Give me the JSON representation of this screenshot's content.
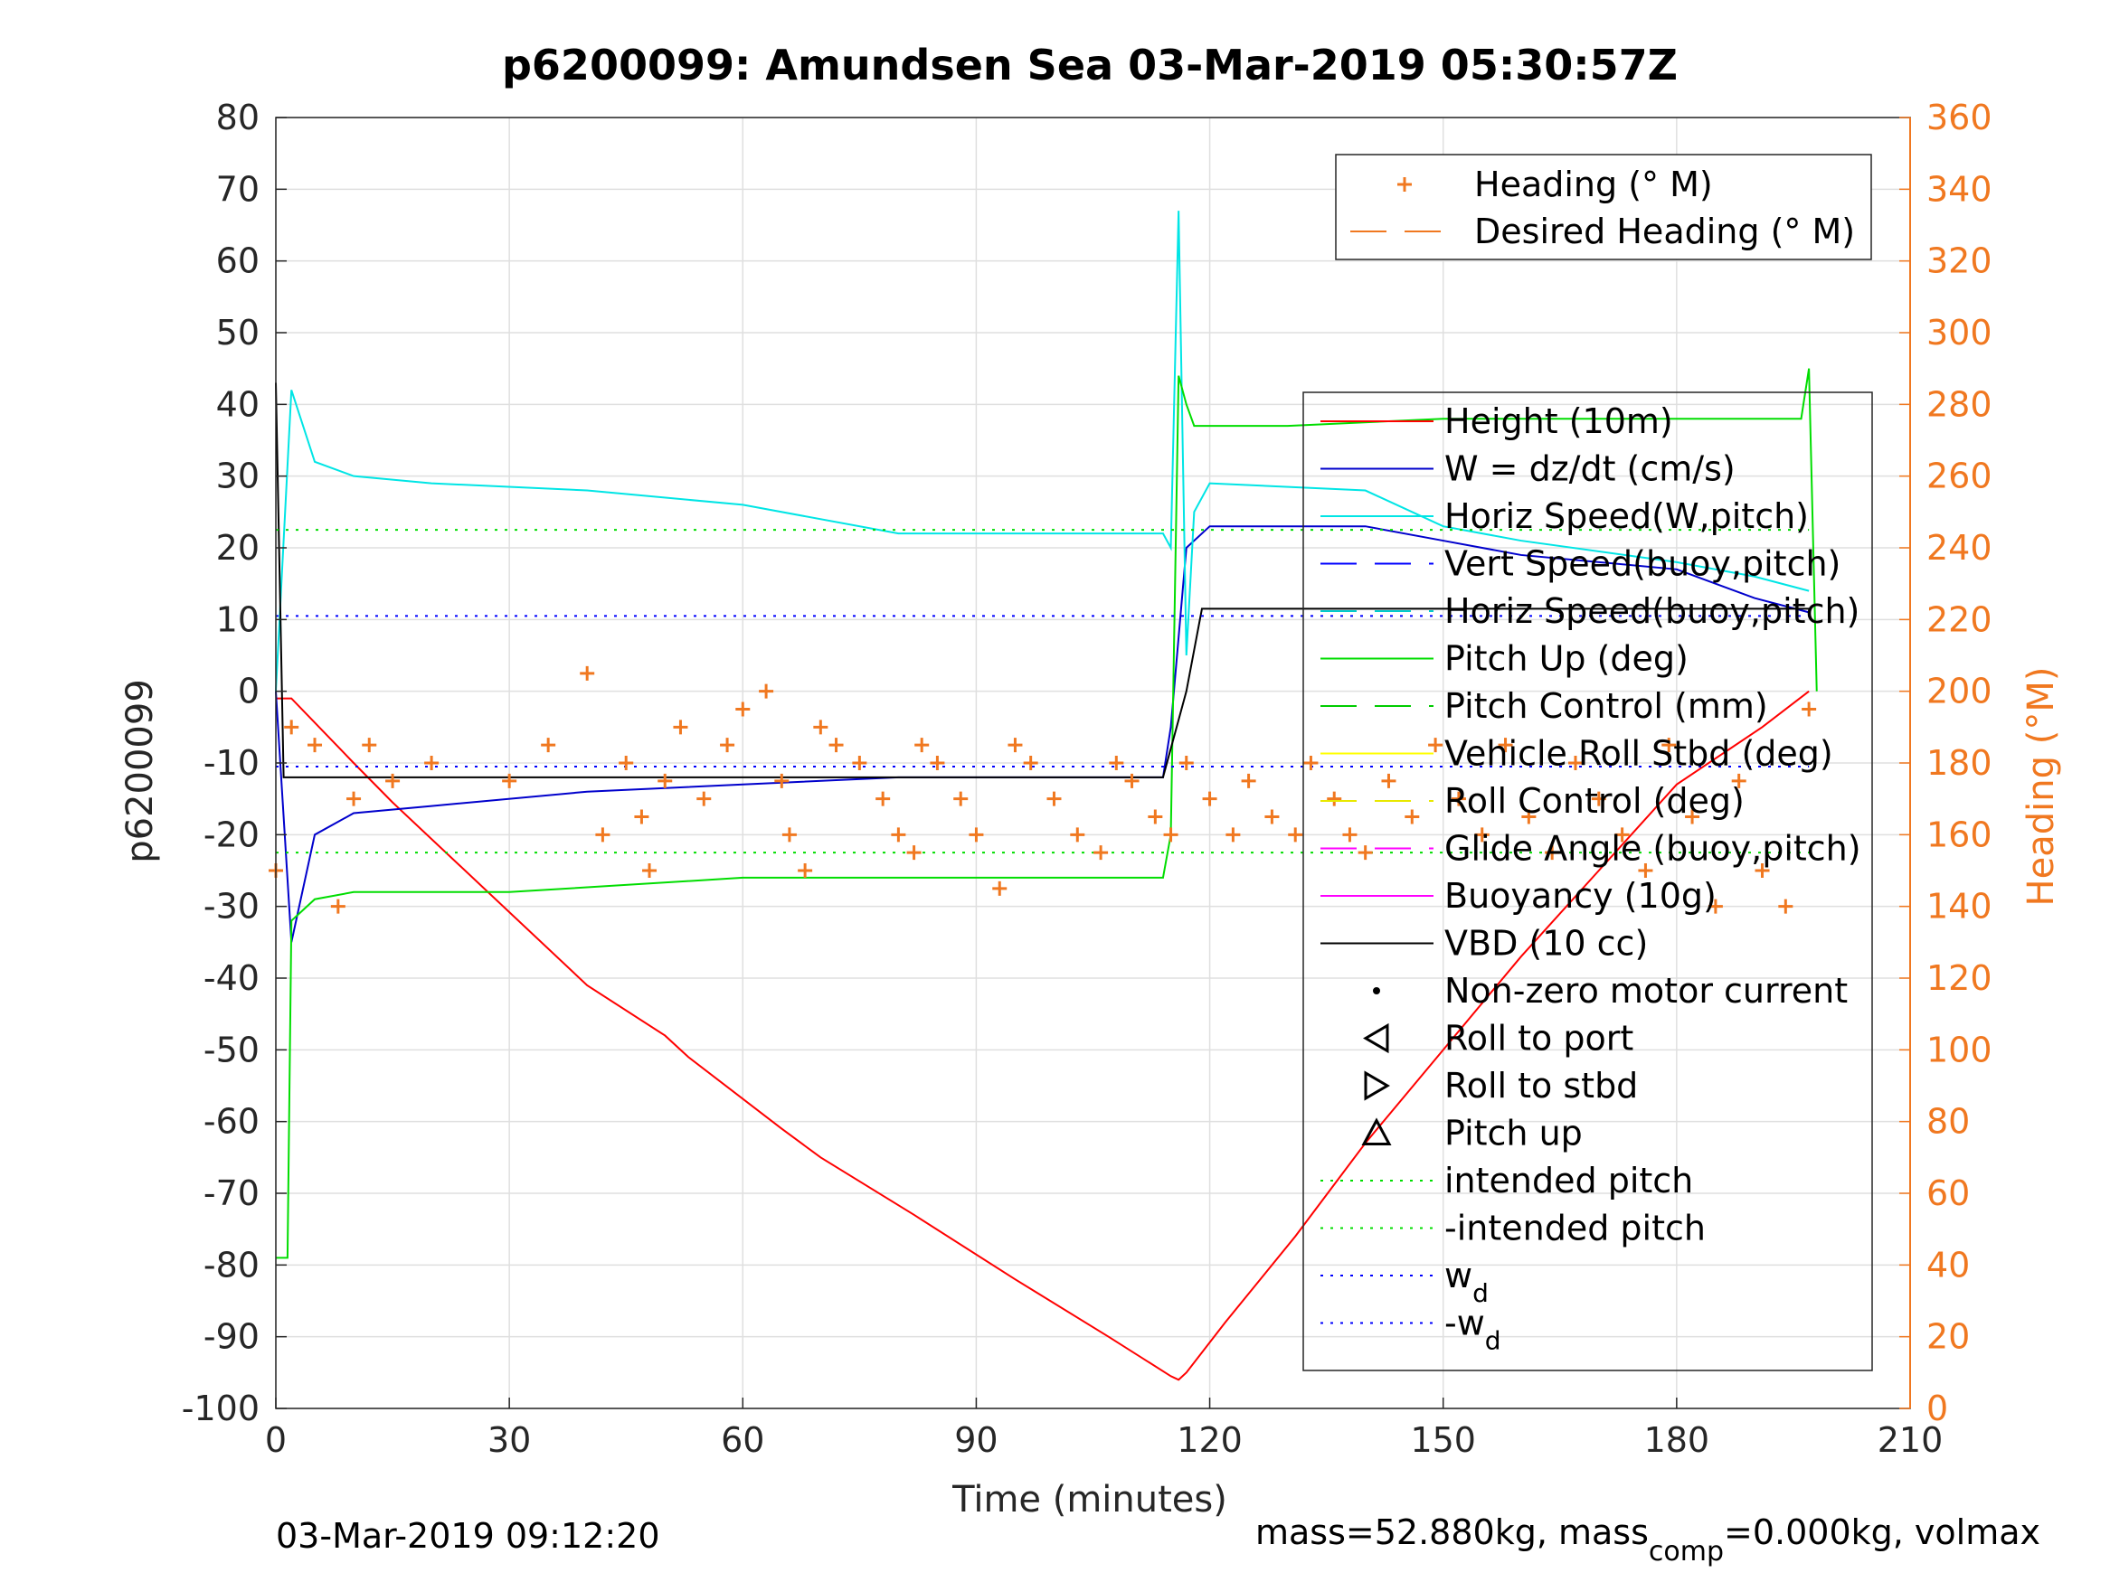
{
  "chart_data": {
    "type": "line",
    "title": "p6200099: Amundsen Sea 03-Mar-2019 05:30:57Z",
    "xlabel": "Time (minutes)",
    "ylabel": "p6200099",
    "y2label": "Heading (°M)",
    "xlim": [
      0,
      210
    ],
    "ylim": [
      -100,
      80
    ],
    "y2lim": [
      0,
      360
    ],
    "xticks": [
      0,
      30,
      60,
      90,
      120,
      150,
      180,
      210
    ],
    "yticks": [
      80,
      70,
      60,
      50,
      40,
      30,
      20,
      10,
      0,
      -10,
      -20,
      -30,
      -40,
      -50,
      -60,
      -70,
      -80,
      -90,
      -100
    ],
    "y2ticks": [
      360,
      340,
      320,
      300,
      280,
      260,
      240,
      220,
      200,
      180,
      160,
      140,
      120,
      100,
      80,
      60,
      40,
      20,
      0
    ],
    "grid": true,
    "legend_top": [
      {
        "name": "Heading (° M)",
        "color": "#f07820",
        "style": "plus"
      },
      {
        "name": "Desired Heading (° M)",
        "color": "#f07820",
        "style": "dash"
      }
    ],
    "legend_main": [
      {
        "name": "Height (10m)",
        "color": "#ff0000",
        "style": "solid"
      },
      {
        "name": "W = dz/dt (cm/s)",
        "color": "#0000cc",
        "style": "solid"
      },
      {
        "name": "Horiz Speed(W,pitch)",
        "color": "#00e5e5",
        "style": "solid"
      },
      {
        "name": "Vert Speed(buoy,pitch)",
        "color": "#0000ff",
        "style": "dash"
      },
      {
        "name": "Horiz Speed(buoy,pitch)",
        "color": "#00cccc",
        "style": "dash"
      },
      {
        "name": "Pitch Up (deg)",
        "color": "#00dd00",
        "style": "solid"
      },
      {
        "name": "Pitch Control (mm)",
        "color": "#00cc00",
        "style": "dash"
      },
      {
        "name": "Vehicle Roll Stbd (deg)",
        "color": "#ffff00",
        "style": "solid"
      },
      {
        "name": "Roll Control (deg)",
        "color": "#e8e800",
        "style": "dash"
      },
      {
        "name": "Glide Angle (buoy,pitch)",
        "color": "#ff00ff",
        "style": "dash"
      },
      {
        "name": "Buoyancy (10g)",
        "color": "#ff00ff",
        "style": "solid"
      },
      {
        "name": "VBD (10 cc)",
        "color": "#000000",
        "style": "solid"
      },
      {
        "name": "Non-zero motor current",
        "color": "#000000",
        "style": "dot"
      },
      {
        "name": "Roll to port",
        "color": "#000000",
        "style": "tri-left"
      },
      {
        "name": "Roll to stbd",
        "color": "#000000",
        "style": "tri-right"
      },
      {
        "name": "Pitch up",
        "color": "#000000",
        "style": "tri-up"
      },
      {
        "name": "intended pitch",
        "color": "#00dd00",
        "style": "dot"
      },
      {
        "name": "-intended pitch",
        "color": "#00dd00",
        "style": "dot"
      },
      {
        "name": "w",
        "sub": "d",
        "color": "#0000ff",
        "style": "dot"
      },
      {
        "name": "-w",
        "sub": "d",
        "color": "#0000ff",
        "style": "dot"
      }
    ],
    "series": [
      {
        "name": "Height (10m)",
        "color": "#ff0000",
        "x": [
          0,
          2,
          10,
          15,
          40,
          50,
          53,
          65,
          70,
          82,
          95,
          107,
          115,
          116,
          117,
          122,
          131,
          140,
          150,
          160,
          170,
          180,
          191,
          197
        ],
        "y": [
          -1,
          -1,
          -10,
          -15.5,
          -41,
          -48,
          -51,
          -61,
          -65,
          -73,
          -82,
          -90,
          -95.5,
          -96,
          -95,
          -88,
          -76,
          -63,
          -50,
          -37,
          -25,
          -13,
          -5,
          0
        ]
      },
      {
        "name": "W = dz/dt (cm/s)",
        "color": "#0000cc",
        "x": [
          0,
          2,
          5,
          10,
          20,
          40,
          60,
          80,
          100,
          114,
          115,
          117,
          120,
          140,
          150,
          160,
          180,
          190,
          197
        ],
        "y": [
          0,
          -35,
          -20,
          -17,
          -16,
          -14,
          -13,
          -12,
          -12,
          -12,
          -5,
          20,
          23,
          23,
          21,
          19,
          17,
          13,
          11
        ]
      },
      {
        "name": "Horiz Speed(W,pitch)",
        "color": "#00e5e5",
        "x": [
          0,
          2,
          5,
          10,
          20,
          40,
          60,
          80,
          100,
          114,
          115,
          116,
          117,
          118,
          120,
          140,
          150,
          160,
          180,
          190,
          197
        ],
        "y": [
          0,
          42,
          32,
          30,
          29,
          28,
          26,
          22,
          22,
          22,
          20,
          67,
          5,
          25,
          29,
          28,
          23,
          21,
          18,
          16,
          14
        ]
      },
      {
        "name": "Pitch Up (deg)",
        "color": "#00dd00",
        "x": [
          0,
          1.5,
          2,
          5,
          10,
          30,
          60,
          90,
          114,
          115,
          116,
          117,
          118,
          130,
          150,
          170,
          196,
          197,
          198
        ],
        "y": [
          -79,
          -79,
          -32,
          -29,
          -28,
          -28,
          -26,
          -26,
          -26,
          -20,
          44,
          40,
          37,
          37,
          38,
          38,
          38,
          45,
          0
        ]
      },
      {
        "name": "VBD (10 cc)",
        "color": "#000000",
        "x": [
          0,
          1,
          2,
          114,
          117,
          119,
          197
        ],
        "y": [
          43,
          -12,
          -12,
          -12,
          0,
          11.5,
          11.5
        ]
      },
      {
        "name": "intended pitch",
        "color": "#00dd00",
        "x": [
          0,
          197
        ],
        "y": [
          22.5,
          22.5
        ]
      },
      {
        "name": "-intended pitch",
        "color": "#00dd00",
        "x": [
          0,
          197
        ],
        "y": [
          -22.5,
          -22.5
        ]
      },
      {
        "name": "w_d",
        "color": "#0000ff",
        "x": [
          0,
          197
        ],
        "y": [
          10.5,
          10.5
        ]
      },
      {
        "name": "-w_d",
        "color": "#0000ff",
        "x": [
          0,
          197
        ],
        "y": [
          -10.5,
          -10.5
        ]
      },
      {
        "name": "Heading (° M)",
        "axis": "right",
        "color": "#f07820",
        "x": [
          0,
          2,
          5,
          8,
          10,
          12,
          15,
          20,
          30,
          35,
          40,
          42,
          45,
          47,
          48,
          50,
          52,
          55,
          58,
          60,
          63,
          65,
          66,
          68,
          70,
          72,
          75,
          78,
          80,
          82,
          83,
          85,
          88,
          90,
          93,
          95,
          97,
          100,
          103,
          106,
          108,
          110,
          113,
          115,
          117,
          120,
          123,
          125,
          128,
          131,
          133,
          136,
          138,
          140,
          143,
          146,
          149,
          152,
          155,
          158,
          161,
          164,
          167,
          170,
          173,
          176,
          179,
          182,
          185,
          188,
          191,
          194,
          197
        ],
        "y": [
          150,
          190,
          185,
          140,
          170,
          185,
          175,
          180,
          175,
          185,
          205,
          160,
          180,
          165,
          150,
          175,
          190,
          170,
          185,
          195,
          200,
          175,
          160,
          150,
          190,
          185,
          180,
          170,
          160,
          155,
          185,
          180,
          170,
          160,
          145,
          185,
          180,
          170,
          160,
          155,
          180,
          175,
          165,
          160,
          180,
          170,
          160,
          175,
          165,
          160,
          180,
          170,
          160,
          155,
          175,
          165,
          185,
          170,
          160,
          185,
          165,
          155,
          180,
          170,
          160,
          150,
          185,
          165,
          140,
          175,
          150,
          140,
          195
        ]
      }
    ],
    "footer_left": "03-Mar-2019 09:12:20",
    "footer_right_parts": [
      "mass=52.880kg, mass",
      "comp",
      "=0.000kg, volmax"
    ]
  }
}
